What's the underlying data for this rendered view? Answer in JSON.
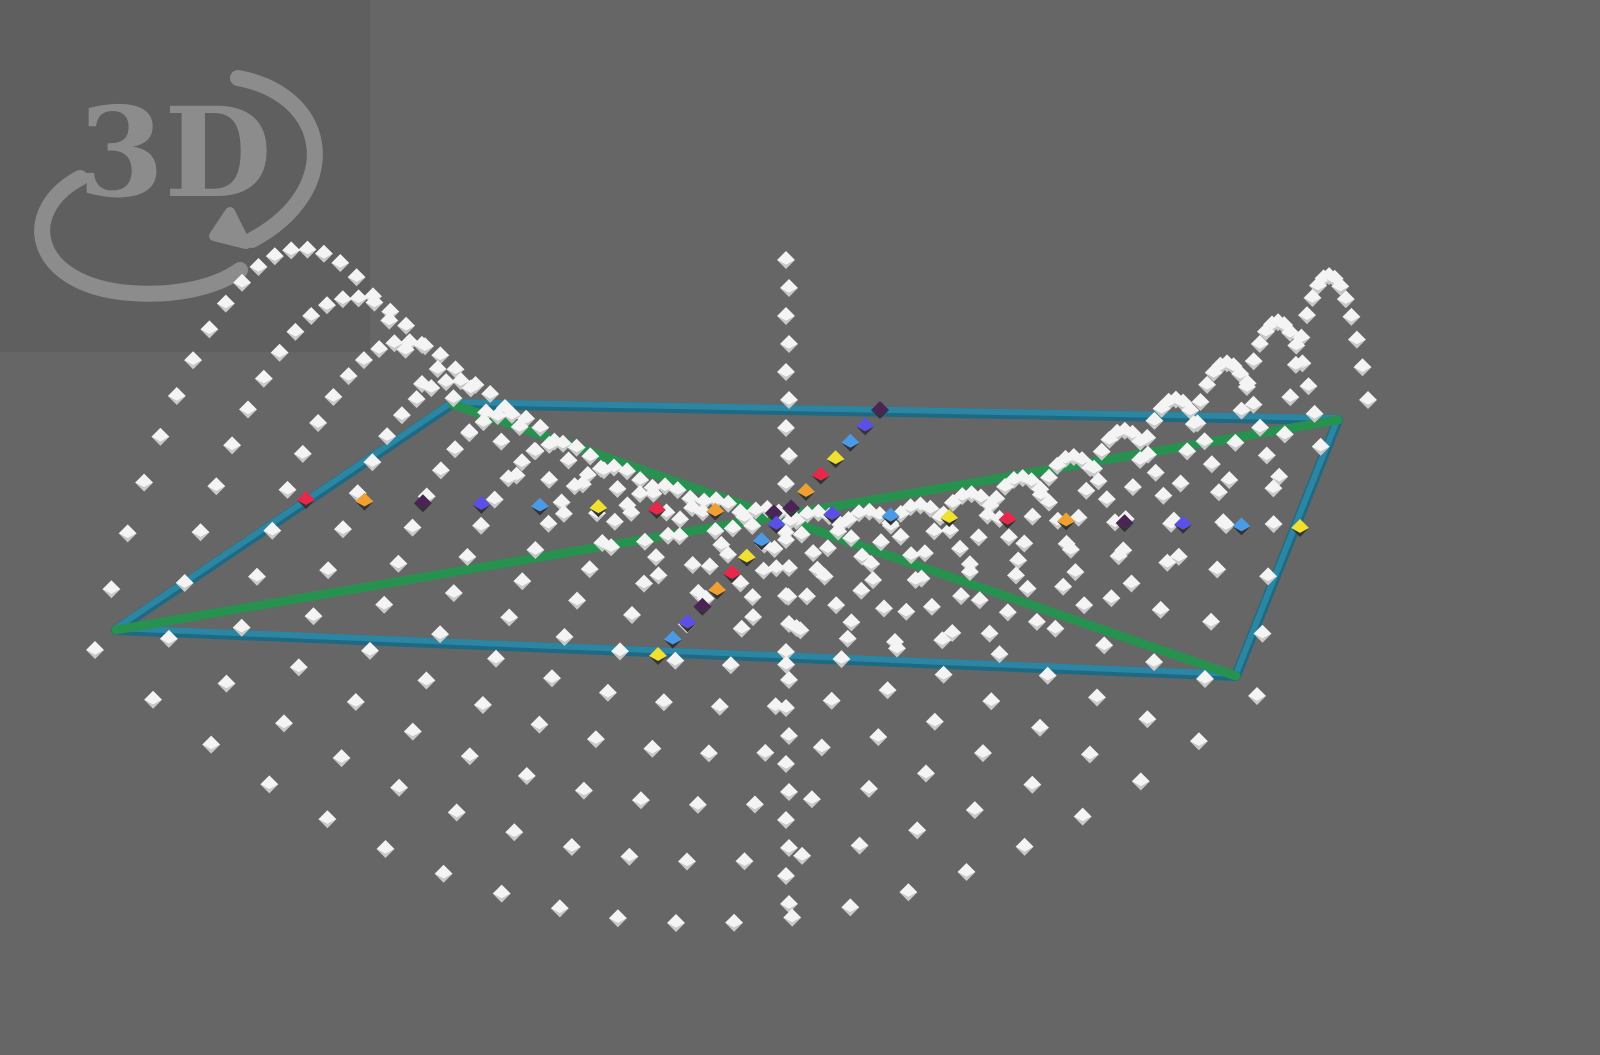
{
  "badge": {
    "label": "3D",
    "icon": "rotate-3d-icon",
    "color": "#8c8c8c"
  },
  "scene": {
    "background": "#666666",
    "colors": {
      "frame": "#2b86a3",
      "frame_dark": "#1f6a82",
      "diagonal": "#27914f",
      "point": "#f4f4f4",
      "point_shade": "#c9c9c9"
    },
    "highlight_palette": [
      "#e8284a",
      "#f0a030",
      "#4a2455",
      "#5a50e8",
      "#4a9ae8",
      "#f0e030"
    ]
  }
}
